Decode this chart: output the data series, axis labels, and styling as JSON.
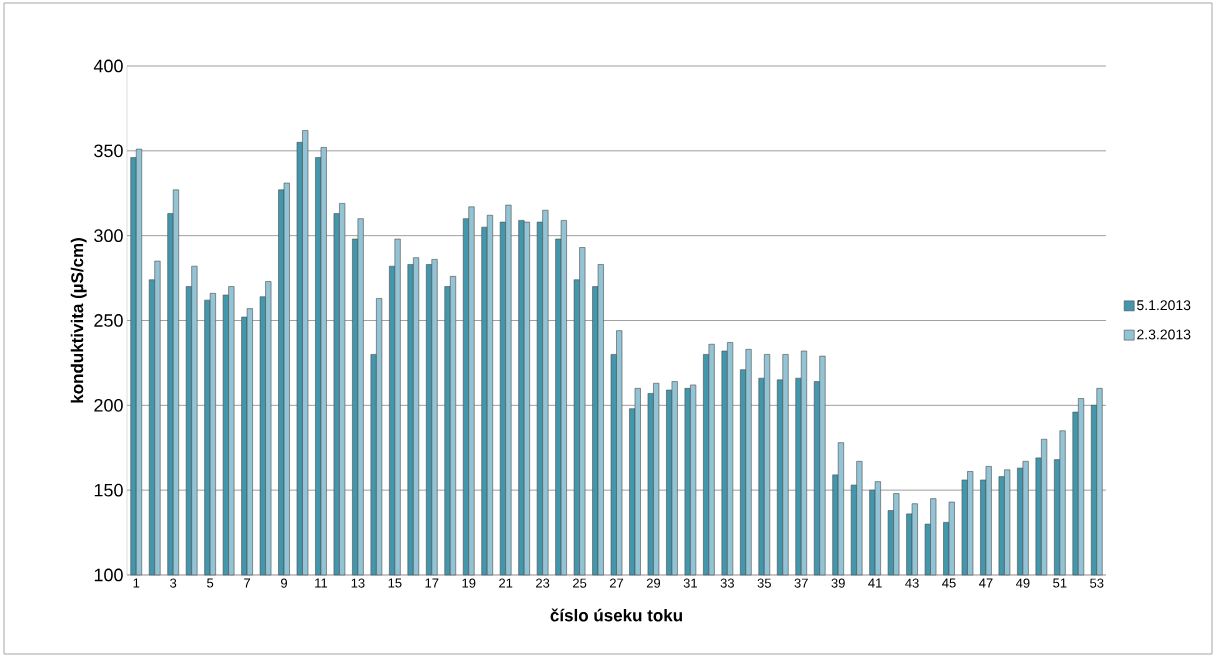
{
  "chart_data": {
    "type": "bar",
    "xlabel": "číslo úseku toku",
    "ylabel": "konduktivita (µS/cm)",
    "categories": [
      "1",
      null,
      "3",
      null,
      "5",
      null,
      "7",
      null,
      "9",
      null,
      "11",
      null,
      "13",
      null,
      "15",
      null,
      "17",
      null,
      "19",
      null,
      "21",
      null,
      "23",
      null,
      "25",
      null,
      "27",
      null,
      "29",
      null,
      "31",
      null,
      "33",
      null,
      "35",
      null,
      "37",
      null,
      "39",
      null,
      "41",
      null,
      "43",
      null,
      "45",
      null,
      "47",
      null,
      "49",
      null,
      "51",
      null,
      "53"
    ],
    "series": [
      {
        "name": "5.1.2013",
        "color": "#4397ad",
        "values": [
          346,
          274,
          313,
          270,
          262,
          265,
          252,
          264,
          327,
          355,
          346,
          313,
          298,
          230,
          282,
          283,
          283,
          270,
          310,
          305,
          308,
          309,
          308,
          298,
          274,
          270,
          230,
          198,
          207,
          209,
          210,
          230,
          232,
          221,
          216,
          215,
          216,
          214,
          159,
          153,
          150,
          138,
          136,
          130,
          131,
          156,
          156,
          158,
          163,
          169,
          168,
          196,
          200
        ]
      },
      {
        "name": "2.3.2013",
        "color": "#93c4d6",
        "values": [
          351,
          285,
          327,
          282,
          266,
          270,
          257,
          273,
          331,
          362,
          352,
          319,
          310,
          263,
          298,
          287,
          286,
          276,
          317,
          312,
          318,
          308,
          315,
          309,
          293,
          283,
          244,
          210,
          213,
          214,
          212,
          236,
          237,
          233,
          230,
          230,
          232,
          229,
          178,
          167,
          155,
          148,
          142,
          145,
          143,
          161,
          164,
          162,
          167,
          180,
          185,
          204,
          210
        ]
      }
    ],
    "ylim": [
      100,
      400
    ],
    "yticks": [
      100,
      150,
      200,
      250,
      300,
      350,
      400
    ],
    "grid": "y",
    "legend": "right"
  }
}
